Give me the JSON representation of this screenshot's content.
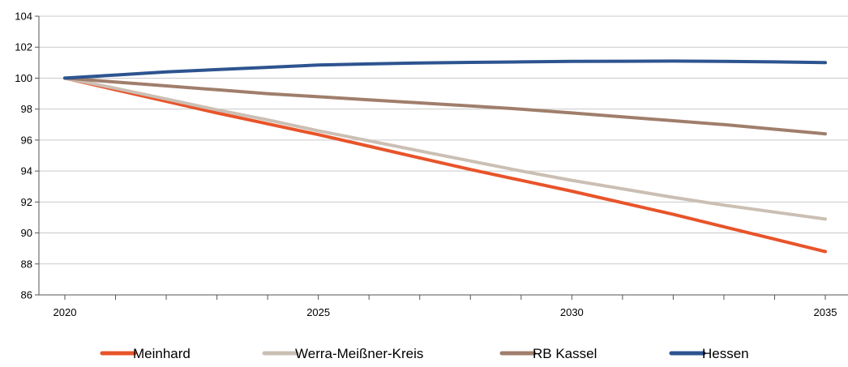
{
  "chart_data": {
    "type": "line",
    "title": "",
    "xlabel": "",
    "ylabel": "",
    "x": [
      2020,
      2021,
      2022,
      2023,
      2024,
      2025,
      2026,
      2027,
      2028,
      2029,
      2030,
      2031,
      2032,
      2033,
      2034,
      2035
    ],
    "xticks": [
      "2020",
      "2025",
      "2030",
      "2035"
    ],
    "ylim": [
      86,
      104
    ],
    "yticks": [
      "86",
      "88",
      "90",
      "92",
      "94",
      "96",
      "98",
      "100",
      "102",
      "104"
    ],
    "grid": true,
    "legend_position": "bottom",
    "series": [
      {
        "name": "Meinhard",
        "color": "#e8542a",
        "values": [
          100,
          99.25,
          98.5,
          97.75,
          97.05,
          96.35,
          95.6,
          94.85,
          94.1,
          93.4,
          92.7,
          91.95,
          91.2,
          90.4,
          89.6,
          88.8
        ]
      },
      {
        "name": "Werra-Meißner-Kreis",
        "color": "#cbbfb4",
        "values": [
          100,
          99.35,
          98.65,
          97.95,
          97.3,
          96.6,
          95.95,
          95.3,
          94.65,
          94.0,
          93.4,
          92.85,
          92.3,
          91.8,
          91.35,
          90.9
        ]
      },
      {
        "name": "RB Kassel",
        "color": "#a07e6c",
        "values": [
          100,
          99.75,
          99.5,
          99.25,
          99.0,
          98.8,
          98.6,
          98.4,
          98.2,
          98.0,
          97.75,
          97.5,
          97.25,
          97.0,
          96.7,
          96.4
        ]
      },
      {
        "name": "Hessen",
        "color": "#2d5490",
        "values": [
          100,
          100.2,
          100.4,
          100.55,
          100.7,
          100.85,
          100.92,
          100.98,
          101.02,
          101.05,
          101.08,
          101.09,
          101.1,
          101.08,
          101.05,
          101.0
        ]
      }
    ]
  }
}
